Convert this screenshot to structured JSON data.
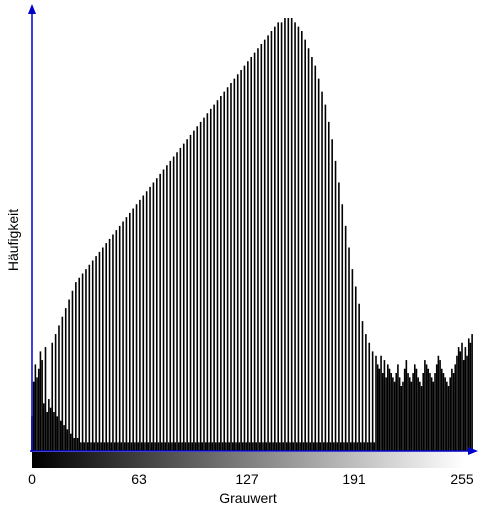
{
  "chart_data": {
    "type": "bar",
    "title": "",
    "xlabel": "Grauwert",
    "ylabel": "Häufigkeit",
    "x_ticks": [
      "0",
      "63",
      "127",
      "191",
      "255"
    ],
    "xlim": [
      0,
      255
    ],
    "ylim": [
      0,
      1
    ],
    "axis_color": "#0000cc",
    "bar_color": "#000000",
    "gradient": [
      "#000000",
      "#ffffff"
    ],
    "series": [
      {
        "values": [
          0.08,
          0.16,
          0.2,
          0.17,
          0.19,
          0.23,
          0.21,
          0.11,
          0.24,
          0.09,
          0.12,
          0.1,
          0.25,
          0.09,
          0.27,
          0.08,
          0.29,
          0.07,
          0.31,
          0.06,
          0.33,
          0.05,
          0.35,
          0.04,
          0.37,
          0.03,
          0.39,
          0.03,
          0.4,
          0.02,
          0.41,
          0.02,
          0.42,
          0.02,
          0.43,
          0.02,
          0.44,
          0.02,
          0.45,
          0.02,
          0.46,
          0.02,
          0.47,
          0.02,
          0.48,
          0.02,
          0.49,
          0.02,
          0.5,
          0.02,
          0.51,
          0.02,
          0.52,
          0.02,
          0.53,
          0.02,
          0.54,
          0.02,
          0.55,
          0.02,
          0.56,
          0.02,
          0.57,
          0.02,
          0.58,
          0.02,
          0.59,
          0.02,
          0.6,
          0.02,
          0.61,
          0.02,
          0.62,
          0.02,
          0.63,
          0.02,
          0.64,
          0.02,
          0.65,
          0.02,
          0.66,
          0.02,
          0.67,
          0.02,
          0.68,
          0.02,
          0.69,
          0.02,
          0.7,
          0.02,
          0.71,
          0.02,
          0.72,
          0.02,
          0.73,
          0.02,
          0.74,
          0.02,
          0.75,
          0.02,
          0.76,
          0.02,
          0.77,
          0.02,
          0.78,
          0.02,
          0.79,
          0.02,
          0.8,
          0.02,
          0.81,
          0.02,
          0.82,
          0.02,
          0.83,
          0.02,
          0.84,
          0.02,
          0.85,
          0.02,
          0.86,
          0.02,
          0.87,
          0.02,
          0.88,
          0.02,
          0.89,
          0.02,
          0.9,
          0.02,
          0.91,
          0.02,
          0.92,
          0.02,
          0.93,
          0.02,
          0.94,
          0.02,
          0.95,
          0.02,
          0.96,
          0.02,
          0.97,
          0.02,
          0.98,
          0.02,
          0.99,
          0.02,
          0.99,
          0.02,
          1.0,
          0.02,
          1.0,
          0.02,
          1.0,
          0.02,
          0.99,
          0.02,
          0.98,
          0.02,
          0.97,
          0.02,
          0.95,
          0.02,
          0.93,
          0.02,
          0.91,
          0.02,
          0.89,
          0.02,
          0.86,
          0.02,
          0.83,
          0.02,
          0.8,
          0.02,
          0.76,
          0.02,
          0.72,
          0.02,
          0.67,
          0.02,
          0.62,
          0.02,
          0.57,
          0.02,
          0.52,
          0.02,
          0.47,
          0.02,
          0.42,
          0.02,
          0.38,
          0.02,
          0.34,
          0.02,
          0.3,
          0.02,
          0.27,
          0.02,
          0.25,
          0.02,
          0.23,
          0.02,
          0.22,
          0.2,
          0.19,
          0.22,
          0.18,
          0.21,
          0.17,
          0.2,
          0.19,
          0.18,
          0.17,
          0.16,
          0.18,
          0.2,
          0.17,
          0.15,
          0.16,
          0.19,
          0.21,
          0.18,
          0.17,
          0.16,
          0.18,
          0.2,
          0.19,
          0.17,
          0.16,
          0.15,
          0.18,
          0.21,
          0.2,
          0.19,
          0.18,
          0.17,
          0.16,
          0.18,
          0.2,
          0.22,
          0.21,
          0.19,
          0.18,
          0.17,
          0.16,
          0.15,
          0.17,
          0.19,
          0.18,
          0.2,
          0.22,
          0.24,
          0.23,
          0.25,
          0.21,
          0.24,
          0.22,
          0.26,
          0.25,
          0.27
        ]
      }
    ]
  }
}
